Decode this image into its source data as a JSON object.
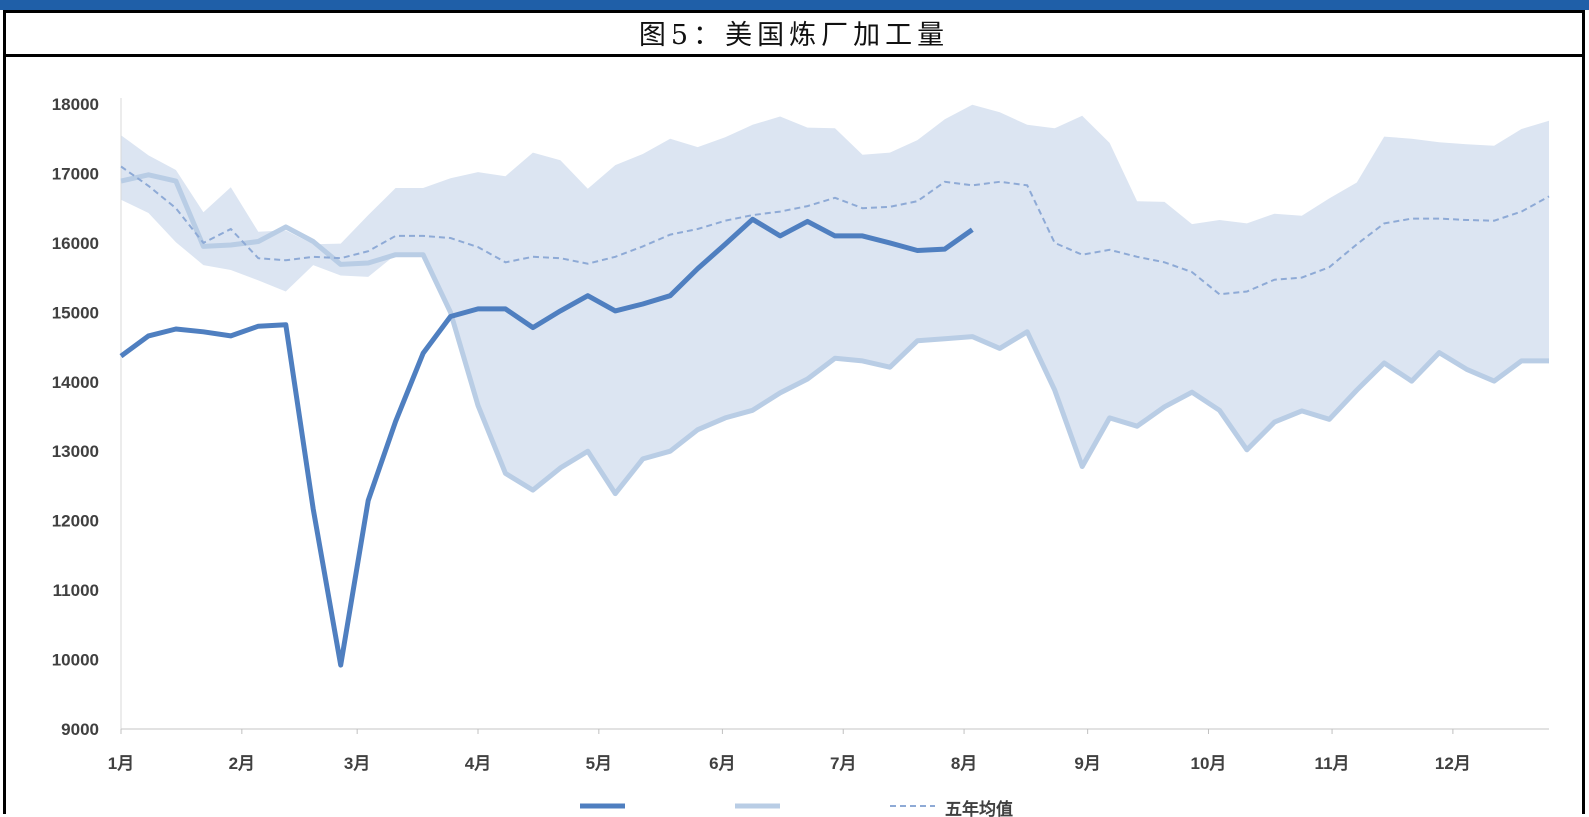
{
  "title": "图5：美国炼厂加工量",
  "chart_data": {
    "type": "line",
    "title": "图5：美国炼厂加工量",
    "ylim": [
      9000,
      18000
    ],
    "yticks": [
      9000,
      10000,
      11000,
      12000,
      13000,
      14000,
      15000,
      16000,
      17000,
      18000
    ],
    "xlim": [
      0,
      52
    ],
    "month_labels": [
      "1月",
      "2月",
      "3月",
      "4月",
      "5月",
      "6月",
      "7月",
      "8月",
      "9月",
      "10月",
      "11月",
      "12月"
    ],
    "month_positions": [
      0,
      4.4,
      8.6,
      13,
      17.4,
      21.9,
      26.3,
      30.7,
      35.2,
      39.6,
      44.1,
      48.5
    ],
    "legend_label": "五年均值",
    "colors": {
      "band": "#dce5f2",
      "line_2020": "#4f7fc0",
      "line_2019": "#b9cde5",
      "average": "#8eaad6"
    },
    "series": [
      {
        "role": "line_2020",
        "x": [
          0,
          1,
          2,
          3,
          4,
          5,
          6,
          7,
          8,
          9,
          10,
          11,
          12,
          13,
          14,
          15,
          16,
          17,
          18,
          19,
          20,
          21,
          22,
          23,
          24,
          25,
          26,
          27,
          28,
          29,
          30,
          31
        ],
        "values": [
          14370,
          14660,
          14760,
          14720,
          14660,
          14800,
          14820,
          12170,
          9920,
          12290,
          13430,
          14410,
          14940,
          15050,
          15050,
          14780,
          15020,
          15240,
          15020,
          15120,
          15240,
          15630,
          15980,
          16340,
          16100,
          16310,
          16100,
          16100,
          16000,
          15890,
          15910,
          16190
        ]
      },
      {
        "role": "line_2019",
        "x": [
          0,
          1,
          2,
          3,
          4,
          5,
          6,
          7,
          8,
          9,
          10,
          11,
          12,
          13,
          14,
          15,
          16,
          17,
          18,
          19,
          20,
          21,
          22,
          23,
          24,
          25,
          26,
          27,
          28,
          29,
          30,
          31,
          32,
          33,
          34,
          35,
          36,
          37,
          38,
          39,
          40,
          41,
          42,
          43,
          44,
          45,
          46,
          47,
          48,
          49,
          50,
          51,
          52
        ],
        "values": [
          16890,
          16980,
          16890,
          15950,
          15970,
          16020,
          16230,
          16020,
          15690,
          15710,
          15830,
          15830,
          15000,
          13660,
          12680,
          12440,
          12760,
          13000,
          12390,
          12890,
          13000,
          13310,
          13480,
          13590,
          13840,
          14040,
          14340,
          14300,
          14210,
          14590,
          14620,
          14650,
          14480,
          14720,
          13880,
          12780,
          13480,
          13360,
          13640,
          13850,
          13590,
          13020,
          13420,
          13580,
          13460,
          13880,
          14270,
          14010,
          14420,
          14180,
          14010,
          14300,
          14300
        ]
      },
      {
        "role": "average",
        "x": [
          0,
          1,
          2,
          3,
          4,
          5,
          6,
          7,
          8,
          9,
          10,
          11,
          12,
          13,
          14,
          15,
          16,
          17,
          18,
          19,
          20,
          21,
          22,
          23,
          24,
          25,
          26,
          27,
          28,
          29,
          30,
          31,
          32,
          33,
          34,
          35,
          36,
          37,
          38,
          39,
          40,
          41,
          42,
          43,
          44,
          45,
          46,
          47,
          48,
          49,
          50,
          51,
          52
        ],
        "values": [
          17100,
          16820,
          16500,
          16000,
          16200,
          15780,
          15750,
          15800,
          15780,
          15880,
          16100,
          16100,
          16070,
          15940,
          15720,
          15800,
          15780,
          15700,
          15800,
          15950,
          16120,
          16200,
          16320,
          16400,
          16450,
          16530,
          16650,
          16500,
          16520,
          16600,
          16880,
          16830,
          16880,
          16830,
          16000,
          15830,
          15900,
          15800,
          15720,
          15580,
          15260,
          15300,
          15470,
          15500,
          15650,
          15980,
          16280,
          16350,
          16350,
          16330,
          16320,
          16450,
          16670
        ]
      },
      {
        "role": "band_upper",
        "x": [
          0,
          1,
          2,
          3,
          4,
          5,
          6,
          7,
          8,
          9,
          10,
          11,
          12,
          13,
          14,
          15,
          16,
          17,
          18,
          19,
          20,
          21,
          22,
          23,
          24,
          25,
          26,
          27,
          28,
          29,
          30,
          31,
          32,
          33,
          34,
          35,
          36,
          37,
          38,
          39,
          40,
          41,
          42,
          43,
          44,
          45,
          46,
          47,
          48,
          49,
          50,
          51,
          52
        ],
        "values": [
          17550,
          17260,
          17050,
          16440,
          16800,
          16160,
          16180,
          15980,
          15990,
          16400,
          16790,
          16790,
          16930,
          17020,
          16960,
          17300,
          17190,
          16780,
          17120,
          17280,
          17500,
          17380,
          17520,
          17700,
          17820,
          17660,
          17650,
          17270,
          17300,
          17480,
          17780,
          17990,
          17880,
          17700,
          17650,
          17830,
          17440,
          16600,
          16590,
          16270,
          16330,
          16280,
          16420,
          16390,
          16640,
          16870,
          17530,
          17500,
          17450,
          17420,
          17400,
          17640,
          17760
        ]
      },
      {
        "role": "band_lower",
        "x": [
          0,
          1,
          2,
          3,
          4,
          5,
          6,
          7,
          8,
          9,
          10,
          11,
          12,
          13,
          14,
          15,
          16,
          17,
          18,
          19,
          20,
          21,
          22,
          23,
          24,
          25,
          26,
          27,
          28,
          29,
          30,
          31,
          32,
          33,
          34,
          35,
          36,
          37,
          38,
          39,
          40,
          41,
          42,
          43,
          44,
          45,
          46,
          47,
          48,
          49,
          50,
          51,
          52
        ],
        "values": [
          16620,
          16430,
          16010,
          15680,
          15610,
          15460,
          15300,
          15680,
          15530,
          15510,
          15830,
          15830,
          15000,
          13660,
          12680,
          12440,
          12760,
          13000,
          12390,
          12890,
          13000,
          13310,
          13480,
          13590,
          13840,
          14040,
          14340,
          14300,
          14210,
          14590,
          14620,
          14650,
          14480,
          14720,
          13880,
          12780,
          13480,
          13360,
          13640,
          13850,
          13590,
          13020,
          13420,
          13580,
          13460,
          13880,
          14270,
          14010,
          14420,
          14180,
          14010,
          14300,
          14300
        ]
      }
    ]
  }
}
